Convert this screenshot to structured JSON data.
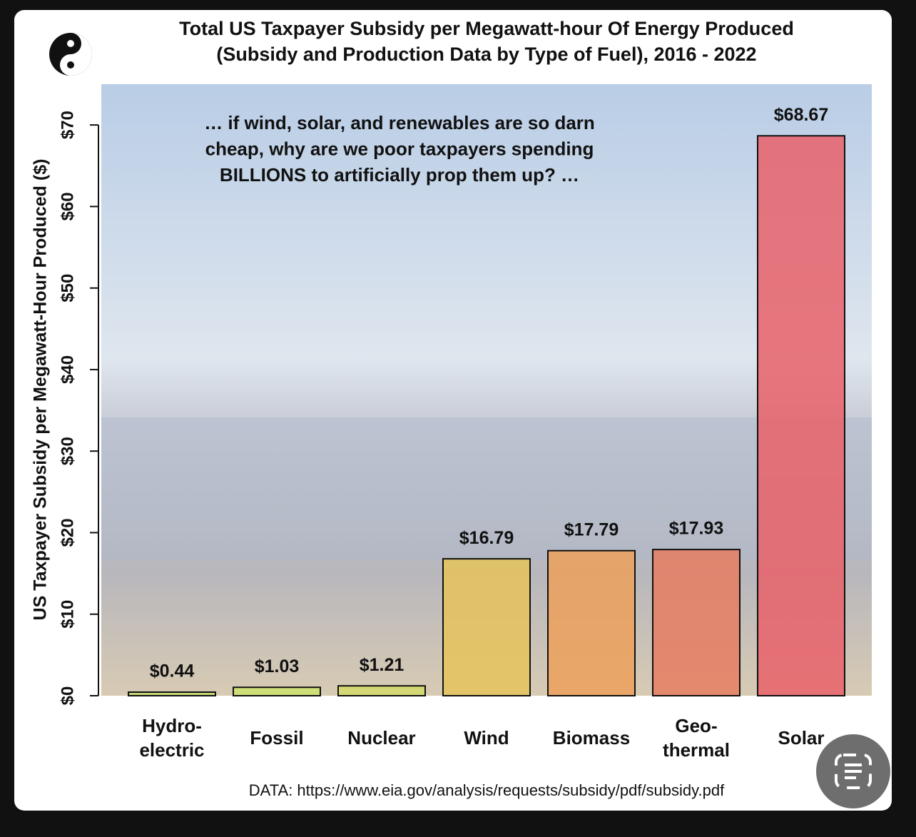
{
  "chart_data": {
    "type": "bar",
    "title": "Total US Taxpayer Subsidy per Megawatt-hour Of Energy Produced",
    "subtitle": "(Subsidy and Production Data by Type of Fuel), 2016 - 2022",
    "annotation": "… if wind, solar, and renewables are so darn\ncheap, why are we poor taxpayers spending\nBILLIONS to artificially prop them up? …",
    "y_label": "US Taxpayer Subsidy per Megawatt-Hour Produced ($)",
    "source": "DATA: https://www.eia.gov/analysis/requests/subsidy/pdf/subsidy.pdf",
    "categories": [
      "Hydro-\nelectric",
      "Fossil",
      "Nuclear",
      "Wind",
      "Biomass",
      "Geo-\nthermal",
      "Solar"
    ],
    "values": [
      0.44,
      1.03,
      1.21,
      16.79,
      17.79,
      17.93,
      68.67
    ],
    "value_labels": [
      "$0.44",
      "$1.03",
      "$1.21",
      "$16.79",
      "$17.79",
      "$17.93",
      "$68.67"
    ],
    "colors": [
      "#bfd86a",
      "#cde36c",
      "#d3da68",
      "#e6c35a",
      "#eca05a",
      "#e67c62",
      "#e8626a"
    ],
    "ylim": [
      0,
      75
    ],
    "yticks": [
      {
        "value": 0,
        "label": "$0"
      },
      {
        "value": 10,
        "label": "$10"
      },
      {
        "value": 20,
        "label": "$20"
      },
      {
        "value": 30,
        "label": "$30"
      },
      {
        "value": 40,
        "label": "$40"
      },
      {
        "value": 50,
        "label": "$50"
      },
      {
        "value": 60,
        "label": "$60"
      },
      {
        "value": 70,
        "label": "$70"
      }
    ]
  }
}
